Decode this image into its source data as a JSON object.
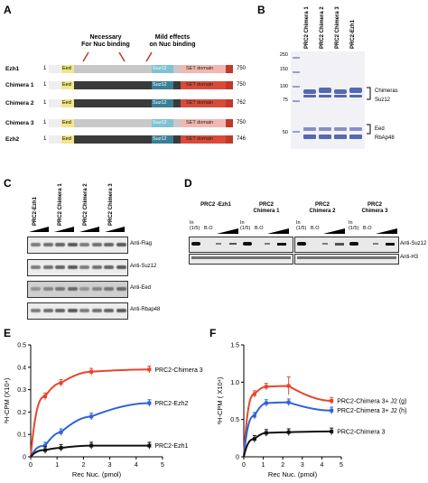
{
  "panels": {
    "A": {
      "label": "A",
      "annotations": {
        "necessary": "Necessary\nFor Nuc binding",
        "mild": "Mild effects\non Nuc binding"
      },
      "rows": [
        {
          "name": "Ezh1",
          "start": "1",
          "end": "750",
          "eed": "Eed",
          "suz": "Suz12",
          "set": "SET domain",
          "body": "#c8c8c8",
          "suzColor": "#7ec3d4"
        },
        {
          "name": "Chimera 1",
          "start": "1",
          "end": "750",
          "eed": "Eed",
          "suz": "Suz12",
          "set": "SET domain",
          "body": "#3a3a3a",
          "suzColor": "#3b7f96"
        },
        {
          "name": "Chimera 2",
          "start": "1",
          "end": "762",
          "eed": "Eed",
          "suz": "Suz12",
          "set": "SET domain",
          "body": "#3a3a3a",
          "suzColor": "#3b7f96"
        },
        {
          "name": "Chimera 3",
          "start": "1",
          "end": "750",
          "eed": "Eed",
          "suz": "Suz12",
          "set": "SET domain",
          "body": "#c8c8c8",
          "suzColor": "#7ec3d4"
        },
        {
          "name": "Ezh2",
          "start": "1",
          "end": "746",
          "eed": "Eed",
          "suz": "Suz12",
          "set": "SET domain",
          "body": "#3a3a3a",
          "suzColor": "#3b7f96"
        }
      ]
    },
    "B": {
      "label": "B",
      "lanes": [
        "PRC2 Chimera 1",
        "PRC2 Chimera 2",
        "PRC2 Chimera 3",
        "PRC2-Ezh1"
      ],
      "markers": [
        "250",
        "150",
        "100",
        "75",
        "50"
      ],
      "bands": {
        "chimeras": "Chimeras",
        "suz12": "Suz12",
        "eed": "Eed",
        "rbap48": "RbAp48"
      }
    },
    "C": {
      "label": "C",
      "lanes": [
        "PRC2-Ezh1",
        "PRC2 Chimera 1",
        "PRC2 Chimera 2",
        "PRC2 Chimera 3"
      ],
      "blots": [
        "Anti-Flag",
        "Anti-Suz12",
        "Anti-Eed",
        "Anti-Rbap48"
      ]
    },
    "D": {
      "label": "D",
      "groups": [
        "PRC2 -Ezh1",
        "PRC2\nChimera 1",
        "PRC2\nChimera 2",
        "PRC2\nChimera 3"
      ],
      "in_label": "In\n(1/5)",
      "bo_label": "B.O",
      "blots": [
        "Anti-Suz12",
        "Anti-H3"
      ]
    },
    "E": {
      "label": "E",
      "ylabel": "³H-CPM (X10⁴)",
      "xlabel": "Rec Nuc. (pmol)",
      "series_labels": [
        "PRC2-Chimera 3",
        "PRC2-Ezh2",
        "PRC2-Ezh1"
      ]
    },
    "F": {
      "label": "F",
      "ylabel": "³H-CPM ( X10⁴)",
      "xlabel": "Rec Nuc. (pmol)",
      "series_labels": [
        "PRC2-Chimera 3+ J2 (g)",
        "PRC2-Chimera 3+ J2 (h)",
        "PRC2-Chimera 3"
      ]
    }
  },
  "chart_data": [
    {
      "type": "line",
      "panel": "E",
      "xlabel": "Rec Nuc. (pmol)",
      "ylabel": "³H-CPM (X10⁴)",
      "xlim": [
        0,
        5
      ],
      "ylim": [
        0,
        0.5
      ],
      "xticks": [
        0,
        1,
        2,
        3,
        4,
        5
      ],
      "yticks": [
        0,
        0.1,
        0.2,
        0.3,
        0.4,
        0.5
      ],
      "series": [
        {
          "name": "PRC2-Chimera 3",
          "color": "#e8452c",
          "x": [
            0.55,
            1.15,
            2.3,
            4.5
          ],
          "y": [
            0.27,
            0.33,
            0.38,
            0.39
          ]
        },
        {
          "name": "PRC2-Ezh2",
          "color": "#2d63d6",
          "x": [
            0.55,
            1.15,
            2.3,
            4.5
          ],
          "y": [
            0.05,
            0.11,
            0.18,
            0.24
          ]
        },
        {
          "name": "PRC2-Ezh1",
          "color": "#111111",
          "x": [
            0.55,
            1.15,
            2.3,
            4.5
          ],
          "y": [
            0.03,
            0.04,
            0.05,
            0.05
          ]
        }
      ]
    },
    {
      "type": "line",
      "panel": "F",
      "xlabel": "Rec Nuc. (pmol)",
      "ylabel": "³H-CPM ( X10⁴)",
      "xlim": [
        0,
        5
      ],
      "ylim": [
        0,
        1.5
      ],
      "xticks": [
        0,
        1,
        2,
        3,
        4,
        5
      ],
      "yticks": [
        0,
        0.5,
        1.0,
        1.5
      ],
      "series": [
        {
          "name": "PRC2-Chimera 3+ J2 (g)",
          "color": "#e8452c",
          "x": [
            0.55,
            1.15,
            2.3,
            4.5
          ],
          "y": [
            0.84,
            0.94,
            0.95,
            0.75
          ]
        },
        {
          "name": "PRC2-Chimera 3+ J2 (h)",
          "color": "#2d63d6",
          "x": [
            0.55,
            1.15,
            2.3,
            4.5
          ],
          "y": [
            0.55,
            0.72,
            0.73,
            0.62
          ]
        },
        {
          "name": "PRC2-Chimera 3",
          "color": "#111111",
          "x": [
            0.55,
            1.15,
            2.3,
            4.5
          ],
          "y": [
            0.24,
            0.32,
            0.33,
            0.34
          ]
        }
      ]
    }
  ]
}
